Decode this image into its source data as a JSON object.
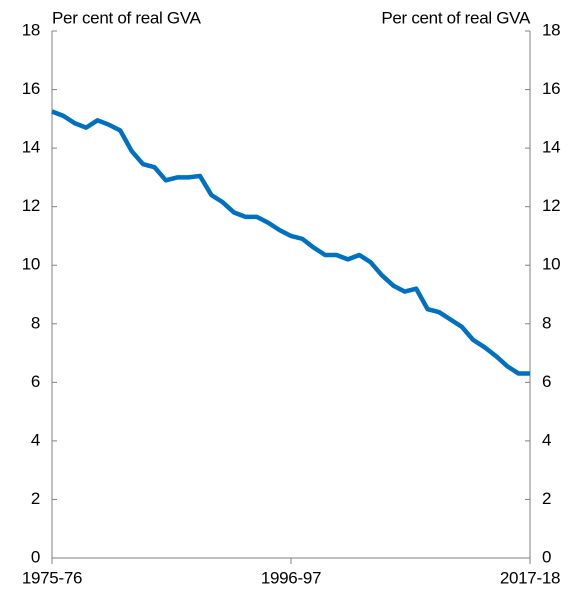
{
  "chart_data": {
    "type": "line",
    "ylabel": "Per cent of real GVA",
    "y2label": "Per cent of real GVA",
    "categories": [
      "1975-76",
      null,
      null,
      null,
      null,
      null,
      null,
      null,
      null,
      null,
      null,
      null,
      null,
      null,
      null,
      null,
      null,
      null,
      null,
      null,
      null,
      "1996-97",
      null,
      null,
      null,
      null,
      null,
      null,
      null,
      null,
      null,
      null,
      null,
      null,
      null,
      null,
      null,
      null,
      null,
      null,
      null,
      null,
      "2017-18"
    ],
    "series": [
      {
        "color": "#0070c0",
        "values": [
          15.25,
          15.1,
          14.85,
          14.7,
          14.95,
          14.8,
          14.6,
          13.9,
          13.45,
          13.35,
          12.9,
          13.0,
          13.0,
          13.05,
          12.4,
          12.15,
          11.8,
          11.65,
          11.65,
          11.45,
          11.2,
          11.0,
          10.9,
          10.6,
          10.35,
          10.35,
          10.2,
          10.35,
          10.1,
          9.65,
          9.3,
          9.1,
          9.2,
          8.5,
          8.4,
          8.15,
          7.9,
          7.45,
          7.2,
          6.9,
          6.55,
          6.3,
          6.3
        ]
      }
    ],
    "ylim": [
      0,
      18
    ],
    "yticks": [
      0,
      2,
      4,
      6,
      8,
      10,
      12,
      14,
      16,
      18
    ],
    "y2lim": [
      0,
      18
    ],
    "y2ticks": [
      0,
      2,
      4,
      6,
      8,
      10,
      12,
      14,
      16,
      18
    ],
    "grid": false
  }
}
